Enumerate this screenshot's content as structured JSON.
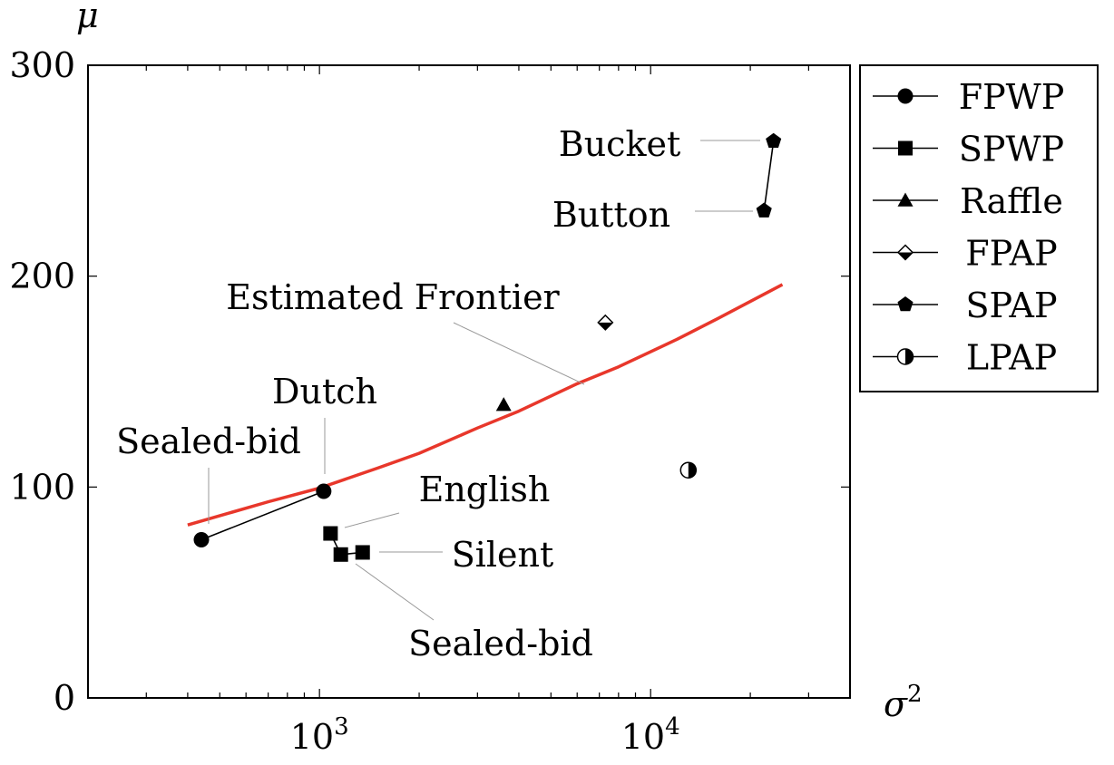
{
  "chart_data": {
    "type": "scatter",
    "title": "",
    "xlabel": "σ",
    "xlabel_sup": "2",
    "ylabel": "μ",
    "xscale": "log",
    "xlim": [
      200,
      40000
    ],
    "ylim": [
      0,
      300
    ],
    "y_ticks": [
      0,
      100,
      200,
      300
    ],
    "y_tick_labels": [
      "0",
      "100",
      "200",
      "300"
    ],
    "x_ticks": [
      1000,
      10000
    ],
    "x_tick_labels": [
      {
        "base": "10",
        "exp": "3"
      },
      {
        "base": "10",
        "exp": "4"
      }
    ],
    "grid": false,
    "legend_position": "outside-right",
    "legend": [
      {
        "name": "FPWP",
        "marker": "circle"
      },
      {
        "name": "SPWP",
        "marker": "square"
      },
      {
        "name": "Raffle",
        "marker": "triangle"
      },
      {
        "name": "FPAP",
        "marker": "half-diamond"
      },
      {
        "name": "SPAP",
        "marker": "pentagon"
      },
      {
        "name": "LPAP",
        "marker": "half-circle"
      }
    ],
    "series": [
      {
        "name": "FPWP",
        "marker": "circle",
        "connected": true,
        "points": [
          {
            "x": 440,
            "y": 75
          },
          {
            "x": 1030,
            "y": 98
          }
        ]
      },
      {
        "name": "SPWP",
        "marker": "square",
        "connected": true,
        "points": [
          {
            "x": 1080,
            "y": 78
          },
          {
            "x": 1160,
            "y": 68
          },
          {
            "x": 1350,
            "y": 69
          }
        ]
      },
      {
        "name": "Raffle",
        "marker": "triangle",
        "connected": false,
        "points": [
          {
            "x": 3600,
            "y": 139
          }
        ]
      },
      {
        "name": "FPAP",
        "marker": "half-diamond",
        "connected": false,
        "points": [
          {
            "x": 7300,
            "y": 178
          }
        ]
      },
      {
        "name": "SPAP",
        "marker": "pentagon",
        "connected": true,
        "points": [
          {
            "x": 22000,
            "y": 231
          },
          {
            "x": 23500,
            "y": 264
          }
        ]
      },
      {
        "name": "LPAP",
        "marker": "half-circle",
        "connected": false,
        "points": [
          {
            "x": 13000,
            "y": 108
          }
        ]
      }
    ],
    "frontier": {
      "label": "Estimated Frontier",
      "color": "#e8372b",
      "x": [
        400,
        700,
        1000,
        1500,
        2000,
        3000,
        4000,
        6000,
        8000,
        12000,
        16000,
        20000,
        25000
      ],
      "y": [
        82,
        93,
        99.5,
        109,
        116,
        128,
        136,
        149,
        157,
        170,
        180,
        188,
        196
      ]
    },
    "annotations": [
      {
        "text": "Sealed-bid",
        "target": {
          "x": 440,
          "y": 75
        }
      },
      {
        "text": "Dutch",
        "target": {
          "x": 1030,
          "y": 98
        }
      },
      {
        "text": "English",
        "target": {
          "x": 1080,
          "y": 78
        }
      },
      {
        "text": "Silent",
        "target": {
          "x": 1350,
          "y": 69
        }
      },
      {
        "text": "Sealed-bid",
        "target": {
          "x": 1160,
          "y": 68
        }
      },
      {
        "text": "Bucket",
        "target": {
          "x": 23500,
          "y": 264
        }
      },
      {
        "text": "Button",
        "target": {
          "x": 22000,
          "y": 231
        }
      },
      {
        "text": "Estimated Frontier",
        "target": {
          "x": 6500,
          "y": 146
        }
      }
    ]
  }
}
